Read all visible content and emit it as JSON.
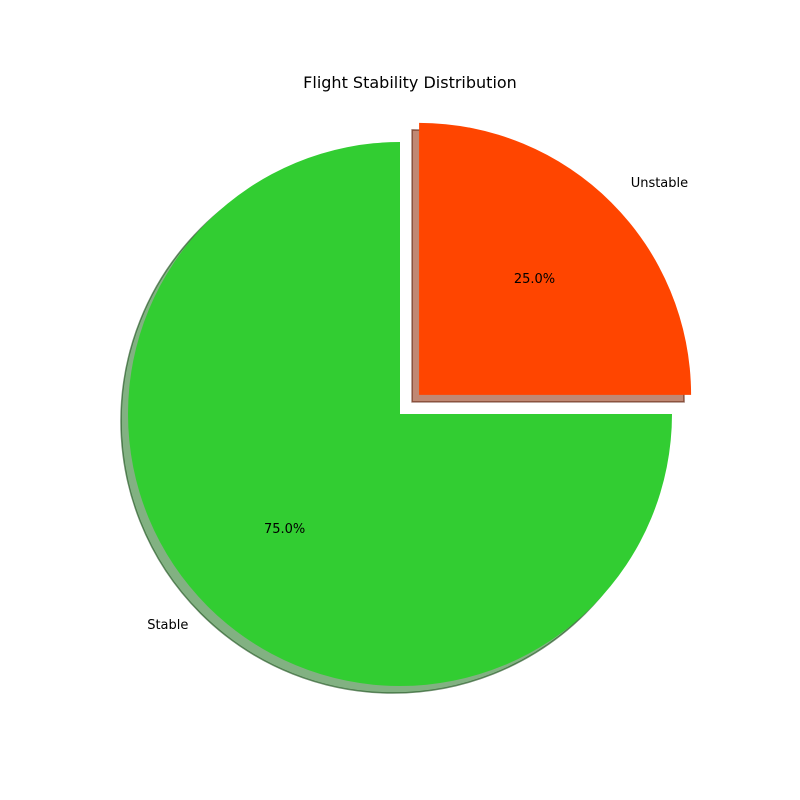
{
  "chart_data": {
    "type": "pie",
    "title": "Flight Stability Distribution",
    "slices": [
      {
        "label": "Unstable",
        "value": 25,
        "pct_label": "25.0%",
        "color": "#FF4500",
        "exploded": true
      },
      {
        "label": "Stable",
        "value": 75,
        "pct_label": "75.0%",
        "color": "#32CD32",
        "exploded": false
      }
    ],
    "start_angle_deg": 90,
    "direction": "clockwise",
    "shadow": true,
    "legend": "none"
  }
}
